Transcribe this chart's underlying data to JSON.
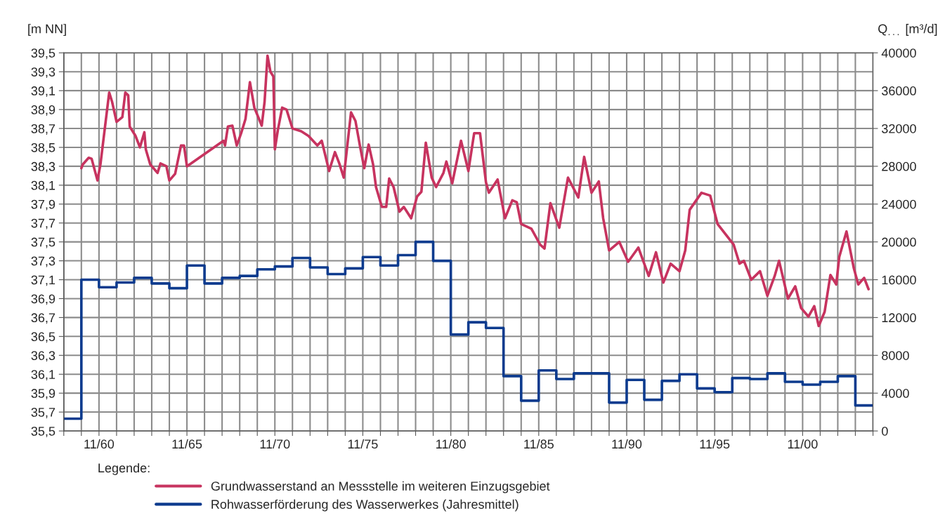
{
  "chart_data": {
    "type": "line",
    "ylabel": "[m NN]",
    "y2label": "Q$_{...}$ [m³/d]",
    "legend_title": "Legende:",
    "legend": "bottom",
    "grid": true,
    "xlim": [
      "1958-11",
      "2004-11"
    ],
    "xticks": [
      {
        "value": "1958-11",
        "label": null
      },
      {
        "value": "1959-11",
        "label": null
      },
      {
        "value": "1960-11",
        "label": "11/60"
      },
      {
        "value": "1961-11",
        "label": null
      },
      {
        "value": "1962-11",
        "label": null
      },
      {
        "value": "1963-11",
        "label": null
      },
      {
        "value": "1964-11",
        "label": null
      },
      {
        "value": "1965-11",
        "label": "11/65"
      },
      {
        "value": "1966-11",
        "label": null
      },
      {
        "value": "1967-11",
        "label": null
      },
      {
        "value": "1968-11",
        "label": null
      },
      {
        "value": "1969-11",
        "label": null
      },
      {
        "value": "1970-11",
        "label": "11/70"
      },
      {
        "value": "1971-11",
        "label": null
      },
      {
        "value": "1972-11",
        "label": null
      },
      {
        "value": "1973-11",
        "label": null
      },
      {
        "value": "1974-11",
        "label": null
      },
      {
        "value": "1975-11",
        "label": "11/75"
      },
      {
        "value": "1976-11",
        "label": null
      },
      {
        "value": "1977-11",
        "label": null
      },
      {
        "value": "1978-11",
        "label": null
      },
      {
        "value": "1979-11",
        "label": null
      },
      {
        "value": "1980-11",
        "label": "11/80"
      },
      {
        "value": "1981-11",
        "label": null
      },
      {
        "value": "1982-11",
        "label": null
      },
      {
        "value": "1983-11",
        "label": null
      },
      {
        "value": "1984-11",
        "label": null
      },
      {
        "value": "1985-11",
        "label": "11/85"
      },
      {
        "value": "1986-11",
        "label": null
      },
      {
        "value": "1987-11",
        "label": null
      },
      {
        "value": "1988-11",
        "label": null
      },
      {
        "value": "1989-11",
        "label": null
      },
      {
        "value": "1990-11",
        "label": "11/90"
      },
      {
        "value": "1991-11",
        "label": null
      },
      {
        "value": "1992-11",
        "label": null
      },
      {
        "value": "1993-11",
        "label": null
      },
      {
        "value": "1994-11",
        "label": null
      },
      {
        "value": "1995-11",
        "label": "11/95"
      },
      {
        "value": "1996-11",
        "label": null
      },
      {
        "value": "1997-11",
        "label": null
      },
      {
        "value": "1998-11",
        "label": null
      },
      {
        "value": "1999-11",
        "label": null
      },
      {
        "value": "2000-11",
        "label": "11/00"
      },
      {
        "value": "2001-11",
        "label": null
      },
      {
        "value": "2002-11",
        "label": null
      },
      {
        "value": "2003-11",
        "label": null
      },
      {
        "value": "2004-11",
        "label": null
      }
    ],
    "ylim": [
      35.5,
      39.5
    ],
    "yticks": [
      {
        "value": 35.5,
        "label": "35,5"
      },
      {
        "value": 35.7,
        "label": "35,7"
      },
      {
        "value": 35.9,
        "label": "35,9"
      },
      {
        "value": 36.1,
        "label": "36,1"
      },
      {
        "value": 36.3,
        "label": "36,3"
      },
      {
        "value": 36.5,
        "label": "36,5"
      },
      {
        "value": 36.7,
        "label": "36,7"
      },
      {
        "value": 36.9,
        "label": "36,9"
      },
      {
        "value": 37.1,
        "label": "37,1"
      },
      {
        "value": 37.3,
        "label": "37,3"
      },
      {
        "value": 37.5,
        "label": "37,5"
      },
      {
        "value": 37.7,
        "label": "37,7"
      },
      {
        "value": 37.9,
        "label": "37,9"
      },
      {
        "value": 38.1,
        "label": "38,1"
      },
      {
        "value": 38.3,
        "label": "38,3"
      },
      {
        "value": 38.5,
        "label": "38,5"
      },
      {
        "value": 38.7,
        "label": "38,7"
      },
      {
        "value": 38.9,
        "label": "38,9"
      },
      {
        "value": 39.1,
        "label": "39,1"
      },
      {
        "value": 39.3,
        "label": "39,3"
      },
      {
        "value": 39.5,
        "label": "39,5"
      }
    ],
    "y2lim": [
      0,
      40000
    ],
    "y2ticks": [
      0,
      4000,
      8000,
      12000,
      16000,
      20000,
      24000,
      28000,
      32000,
      36000,
      40000
    ],
    "series": [
      {
        "name": "Grundwasserstand an Messstelle im weiteren Einzugsgebiet",
        "color": "#c7335f",
        "x": [
          "1959-11",
          "1959-12",
          "1960-04",
          "1960-06",
          "1960-10",
          "1960-12",
          "1961-02",
          "1961-06",
          "1961-08",
          "1961-11",
          "1962-03",
          "1962-05",
          "1962-07",
          "1962-08",
          "1962-12",
          "1963-03",
          "1963-06",
          "1963-07",
          "1963-10",
          "1964-03",
          "1964-05",
          "1964-09",
          "1964-11",
          "1965-03",
          "1965-07",
          "1965-09",
          "1965-11",
          "1967-12",
          "1968-01",
          "1968-03",
          "1968-06",
          "1968-09",
          "1968-12",
          "1969-03",
          "1969-06",
          "1969-09",
          "1970-02",
          "1970-04",
          "1970-06",
          "1970-08",
          "1970-10",
          "1970-11",
          "1971-01",
          "1971-04",
          "1971-07",
          "1971-11",
          "1972-05",
          "1972-10",
          "1973-04",
          "1973-07",
          "1973-12",
          "1974-04",
          "1974-07",
          "1974-10",
          "1975-03",
          "1975-06",
          "1975-09",
          "1975-12",
          "1976-03",
          "1976-06",
          "1976-08",
          "1976-12",
          "1977-03",
          "1977-05",
          "1977-08",
          "1977-12",
          "1978-03",
          "1978-08",
          "1978-12",
          "1979-03",
          "1979-06",
          "1979-10",
          "1980-01",
          "1980-06",
          "1980-08",
          "1980-12",
          "1981-06",
          "1981-11",
          "1982-03",
          "1982-07",
          "1982-11",
          "1983-01",
          "1983-07",
          "1983-12",
          "1984-05",
          "1984-08",
          "1984-11",
          "1985-06",
          "1985-12",
          "1986-03",
          "1986-07",
          "1987-01",
          "1987-07",
          "1988-02",
          "1988-06",
          "1988-11",
          "1989-04",
          "1989-07",
          "1989-11",
          "1990-06",
          "1990-12",
          "1991-07",
          "1992-02",
          "1992-07",
          "1992-12",
          "1993-05",
          "1993-11",
          "1994-03",
          "1994-06",
          "1995-02",
          "1995-08",
          "1996-01",
          "1996-07",
          "1996-12",
          "1997-04",
          "1997-07",
          "1997-12",
          "1998-06",
          "1998-11",
          "1999-04",
          "1999-07",
          "2000-01",
          "2000-06",
          "2000-10",
          "2001-03",
          "2001-07",
          "2001-10",
          "2002-02",
          "2002-06",
          "2002-10",
          "2002-12",
          "2003-05",
          "2003-10",
          "2004-01",
          "2004-05",
          "2004-08"
        ],
        "values": [
          38.28,
          38.32,
          38.39,
          38.38,
          38.15,
          38.32,
          38.58,
          39.08,
          38.98,
          38.77,
          38.82,
          39.08,
          39.05,
          38.72,
          38.62,
          38.5,
          38.66,
          38.48,
          38.32,
          38.23,
          38.33,
          38.3,
          38.15,
          38.22,
          38.52,
          38.52,
          38.3,
          38.57,
          38.52,
          38.72,
          38.73,
          38.52,
          38.65,
          38.8,
          39.19,
          38.92,
          38.73,
          38.98,
          39.47,
          39.3,
          39.25,
          38.48,
          38.68,
          38.92,
          38.9,
          38.7,
          38.67,
          38.62,
          38.52,
          38.57,
          38.25,
          38.45,
          38.33,
          38.18,
          38.87,
          38.78,
          38.52,
          38.28,
          38.53,
          38.32,
          38.08,
          37.87,
          37.87,
          38.17,
          38.08,
          37.82,
          37.87,
          37.75,
          37.98,
          38.03,
          38.55,
          38.18,
          38.08,
          38.23,
          38.35,
          38.12,
          38.57,
          38.25,
          38.65,
          38.65,
          38.13,
          38.02,
          38.16,
          37.75,
          37.94,
          37.92,
          37.69,
          37.64,
          37.47,
          37.43,
          37.91,
          37.65,
          38.18,
          37.97,
          38.4,
          38.02,
          38.14,
          37.75,
          37.41,
          37.5,
          37.29,
          37.44,
          37.14,
          37.39,
          37.07,
          37.27,
          37.19,
          37.41,
          37.84,
          38.02,
          37.99,
          37.69,
          37.57,
          37.47,
          37.27,
          37.3,
          37.1,
          37.19,
          36.93,
          37.14,
          37.3,
          36.9,
          37.03,
          36.8,
          36.71,
          36.82,
          36.61,
          36.76,
          37.15,
          37.05,
          37.34,
          37.61,
          37.22,
          37.05,
          37.12,
          37.0
        ]
      },
      {
        "name": "Rohwasserförderung des Wasserwerkes (Jahresmittel)",
        "type": "step",
        "axis": "y2",
        "color": "#0d3b8e",
        "x": [
          "1958-11",
          "1959-11",
          "1960-11",
          "1961-11",
          "1962-11",
          "1963-11",
          "1964-11",
          "1965-11",
          "1966-11",
          "1967-11",
          "1968-11",
          "1969-11",
          "1970-11",
          "1971-11",
          "1972-11",
          "1973-11",
          "1974-11",
          "1975-11",
          "1976-11",
          "1977-11",
          "1978-11",
          "1979-11",
          "1980-11",
          "1981-11",
          "1982-11",
          "1983-11",
          "1984-11",
          "1985-11",
          "1986-11",
          "1987-11",
          "1988-11",
          "1989-11",
          "1990-11",
          "1991-11",
          "1992-11",
          "1993-11",
          "1994-11",
          "1995-11",
          "1996-11",
          "1997-11",
          "1998-11",
          "1999-11",
          "2000-11",
          "2001-11",
          "2002-11",
          "2003-11",
          "2004-11"
        ],
        "values": [
          1300,
          16000,
          15200,
          15700,
          16200,
          15600,
          15100,
          17500,
          15600,
          16200,
          16400,
          17100,
          17400,
          18300,
          17300,
          16600,
          17200,
          18400,
          17500,
          18600,
          20000,
          18000,
          10200,
          11500,
          10900,
          5800,
          3200,
          6400,
          5500,
          6100,
          6100,
          3000,
          5400,
          3300,
          5300,
          6000,
          4500,
          4100,
          5600,
          5500,
          6100,
          5200,
          4900,
          5200,
          5800,
          2700,
          2700
        ]
      }
    ]
  }
}
